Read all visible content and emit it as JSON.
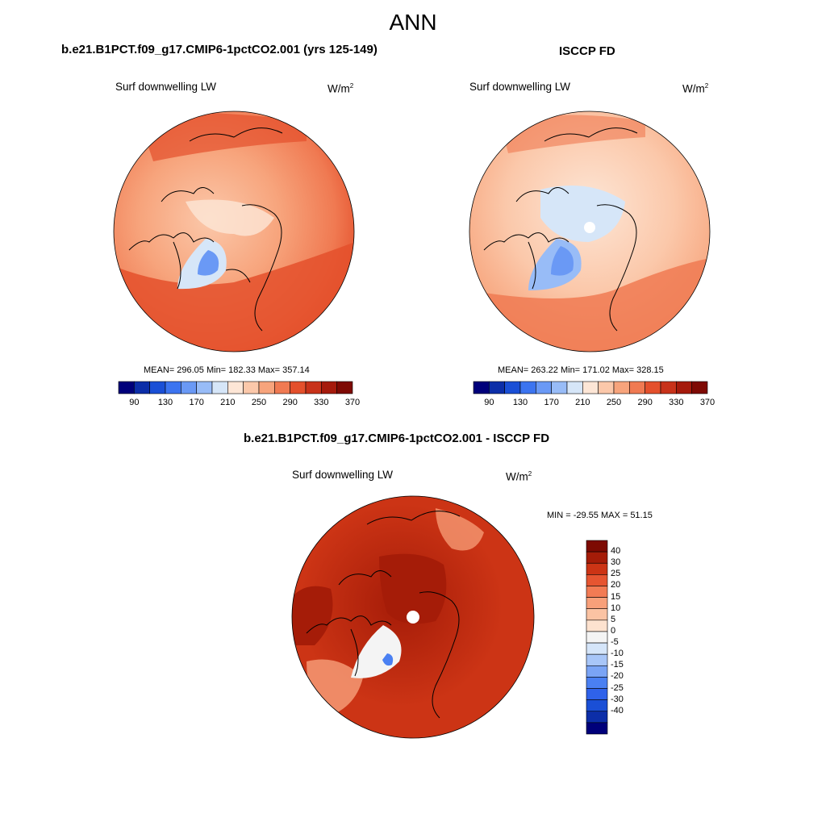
{
  "title": "ANN",
  "colors": {
    "abs_scale": [
      "#00007a",
      "#0c2ea8",
      "#1a4fd6",
      "#3c74f0",
      "#6a99f5",
      "#98bcf7",
      "#d6e6f8",
      "#fde6d6",
      "#fbc8aa",
      "#f7a47c",
      "#f07a52",
      "#e4502c",
      "#c8321a",
      "#a51a0c",
      "#7e0a04"
    ],
    "diff_scale": [
      "#00007a",
      "#0c2ea8",
      "#1a4fd6",
      "#2f62ea",
      "#4a80f2",
      "#7aa4f5",
      "#a8c6f8",
      "#d5e5f9",
      "#f4f4f4",
      "#fde2cf",
      "#fbc3a3",
      "#f8a07a",
      "#f27b54",
      "#e65531",
      "#cc3415",
      "#a51c08",
      "#7d0a02"
    ],
    "land_outline": "#000000"
  },
  "panels": {
    "model": {
      "heading": "b.e21.B1PCT.f09_g17.CMIP6-1pctCO2.001 (yrs 125-149)",
      "variable": "Surf downwelling LW",
      "units": "W/m",
      "units_sup": "2",
      "stats": "MEAN= 296.05  Min= 182.33  Max= 357.14"
    },
    "obs": {
      "heading": "ISCCP FD",
      "variable": "Surf downwelling LW",
      "units": "W/m",
      "units_sup": "2",
      "stats": "MEAN= 263.22  Min= 171.02  Max= 328.15"
    },
    "diff": {
      "heading": "b.e21.B1PCT.f09_g17.CMIP6-1pctCO2.001 - ISCCP FD",
      "variable": "Surf downwelling LW",
      "units": "W/m",
      "units_sup": "2",
      "stats": "MIN = -29.55 MAX =  51.15"
    }
  },
  "chart_data": [
    {
      "type": "heatmap",
      "projection": "north polar stereographic",
      "title": "b.e21.B1PCT.f09_g17.CMIP6-1pctCO2.001 (yrs 125-149)",
      "field": "Surf downwelling LW",
      "units": "W/m^2",
      "mean": 296.05,
      "min": 182.33,
      "max": 357.14,
      "colorbar": {
        "ticks": [
          90,
          130,
          170,
          210,
          250,
          290,
          330,
          370
        ],
        "levels": [
          70,
          90,
          110,
          130,
          150,
          170,
          190,
          210,
          230,
          250,
          270,
          290,
          310,
          330,
          350,
          370,
          390
        ],
        "orientation": "horizontal"
      }
    },
    {
      "type": "heatmap",
      "projection": "north polar stereographic",
      "title": "ISCCP FD",
      "field": "Surf downwelling LW",
      "units": "W/m^2",
      "mean": 263.22,
      "min": 171.02,
      "max": 328.15,
      "colorbar": {
        "ticks": [
          90,
          130,
          170,
          210,
          250,
          290,
          330,
          370
        ],
        "levels": [
          70,
          90,
          110,
          130,
          150,
          170,
          190,
          210,
          230,
          250,
          270,
          290,
          310,
          330,
          350,
          370,
          390
        ],
        "orientation": "horizontal"
      }
    },
    {
      "type": "heatmap",
      "projection": "north polar stereographic",
      "title": "b.e21.B1PCT.f09_g17.CMIP6-1pctCO2.001 - ISCCP FD",
      "field": "Surf downwelling LW",
      "units": "W/m^2",
      "min": -29.55,
      "max": 51.15,
      "colorbar": {
        "ticks": [
          40,
          30,
          25,
          20,
          15,
          10,
          5,
          0,
          -5,
          -10,
          -15,
          -20,
          -25,
          -30,
          -40
        ],
        "orientation": "vertical"
      }
    }
  ]
}
